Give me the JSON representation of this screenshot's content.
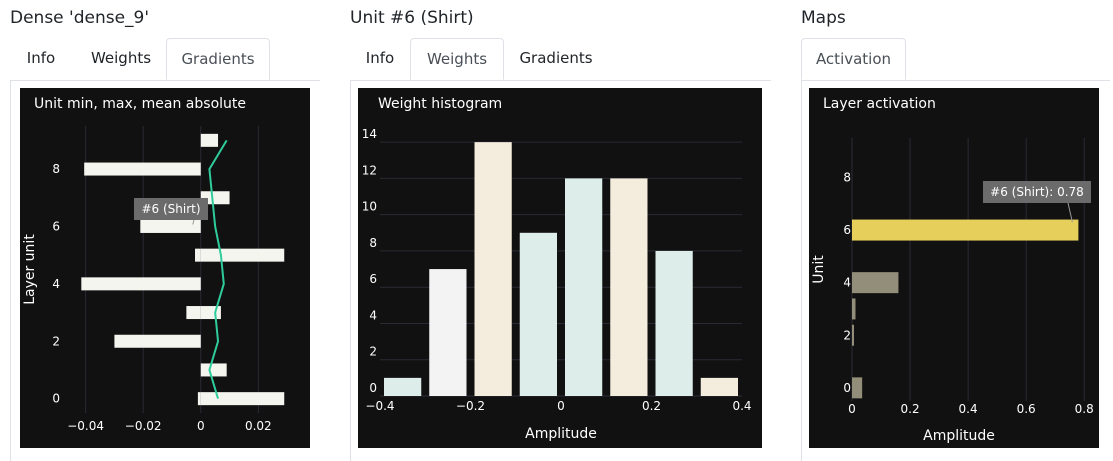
{
  "panels": [
    {
      "title": "Dense 'dense_9'",
      "tabs": [
        {
          "label": "Info"
        },
        {
          "label": "Weights"
        },
        {
          "label": "Gradients"
        }
      ],
      "active_tab": 2
    },
    {
      "title": "Unit #6 (Shirt)",
      "tabs": [
        {
          "label": "Info"
        },
        {
          "label": "Weights"
        },
        {
          "label": "Gradients"
        }
      ],
      "active_tab": 1
    },
    {
      "title": "Maps",
      "tabs": [
        {
          "label": "Activation"
        }
      ],
      "active_tab": 0
    }
  ],
  "colors": {
    "background": "#111111",
    "bar_white": "#f5f5f0",
    "line_green": "#2ecc9a",
    "hist_white": "#f3f3f3",
    "hist_cream": "#f4ecdc",
    "hist_mint": "#dcedea",
    "act_highlight": "#e6cf5b",
    "act_gray": "#938e79",
    "tooltip_bg": "#6b6b6b"
  },
  "chart_data": [
    {
      "type": "bar",
      "orientation": "horizontal",
      "title": "Unit min, max, mean absolute",
      "ylabel": "Layer unit",
      "xlabel": "",
      "xlim": [
        -0.043,
        0.031
      ],
      "ylim": [
        -0.5,
        9.5
      ],
      "x_ticks": [
        {
          "v": -0.04,
          "t": "−0.04"
        },
        {
          "v": -0.02,
          "t": "−0.02"
        },
        {
          "v": 0,
          "t": "0"
        },
        {
          "v": 0.02,
          "t": "0.02"
        }
      ],
      "y_ticks": [
        {
          "v": 0,
          "t": "0"
        },
        {
          "v": 2,
          "t": "2"
        },
        {
          "v": 4,
          "t": "4"
        },
        {
          "v": 6,
          "t": "6"
        },
        {
          "v": 8,
          "t": "8"
        }
      ],
      "units": [
        0,
        1,
        2,
        3,
        4,
        5,
        6,
        7,
        8,
        9
      ],
      "min": [
        -0.001,
        0.0,
        -0.03,
        -0.005,
        -0.0415,
        -0.002,
        -0.021,
        0.0,
        -0.0405,
        0.0
      ],
      "max": [
        0.029,
        0.009,
        0.0,
        0.007,
        0.0,
        0.029,
        0.0,
        0.01,
        0.0,
        0.006
      ],
      "mean_abs": [
        0.006,
        0.003,
        0.006,
        0.005,
        0.008,
        0.007,
        0.005,
        0.004,
        0.003,
        0.009
      ],
      "tooltip": {
        "text": "#6 (Shirt)",
        "unit": 6
      }
    },
    {
      "type": "bar",
      "title": "Weight histogram",
      "xlabel": "Amplitude",
      "ylabel": "",
      "xlim": [
        -0.4,
        0.4
      ],
      "ylim": [
        0,
        15
      ],
      "x_ticks": [
        {
          "v": -0.4,
          "t": "−0.4"
        },
        {
          "v": -0.2,
          "t": "−0.2"
        },
        {
          "v": 0,
          "t": "0"
        },
        {
          "v": 0.2,
          "t": "0.2"
        },
        {
          "v": 0.4,
          "t": "0.4"
        }
      ],
      "y_ticks": [
        {
          "v": 0,
          "t": "0"
        },
        {
          "v": 2,
          "t": "2"
        },
        {
          "v": 4,
          "t": "4"
        },
        {
          "v": 6,
          "t": "6"
        },
        {
          "v": 8,
          "t": "8"
        },
        {
          "v": 10,
          "t": "10"
        },
        {
          "v": 12,
          "t": "12"
        },
        {
          "v": 14,
          "t": "14"
        }
      ],
      "bins": [
        -0.35,
        -0.25,
        -0.15,
        -0.05,
        0.05,
        0.15,
        0.25,
        0.35
      ],
      "bin_width": 0.1,
      "values": [
        1,
        7,
        14,
        9,
        12,
        12,
        8,
        1
      ],
      "bar_colors": [
        "#dcedea",
        "#f3f3f3",
        "#f4ecdc",
        "#dcedea",
        "#dcedea",
        "#f4ecdc",
        "#dcedea",
        "#f4ecdc"
      ]
    },
    {
      "type": "bar",
      "orientation": "horizontal",
      "title": "Layer activation",
      "xlabel": "Amplitude",
      "ylabel": "Unit",
      "xlim": [
        0,
        0.82
      ],
      "ylim": [
        -0.5,
        9.5
      ],
      "x_ticks": [
        {
          "v": 0,
          "t": "0"
        },
        {
          "v": 0.2,
          "t": "0.2"
        },
        {
          "v": 0.4,
          "t": "0.4"
        },
        {
          "v": 0.6,
          "t": "0.6"
        },
        {
          "v": 0.8,
          "t": "0.8"
        }
      ],
      "y_ticks": [
        {
          "v": 0,
          "t": "0"
        },
        {
          "v": 2,
          "t": "2"
        },
        {
          "v": 4,
          "t": "4"
        },
        {
          "v": 6,
          "t": "6"
        },
        {
          "v": 8,
          "t": "8"
        }
      ],
      "units": [
        0,
        1,
        2,
        3,
        4,
        5,
        6,
        7,
        8,
        9
      ],
      "values": [
        0.035,
        0.0,
        0.001,
        0.012,
        0.16,
        0.0,
        0.78,
        0.0,
        0.0,
        0.0
      ],
      "highlight_unit": 6,
      "tooltip": {
        "text": "#6 (Shirt): 0.78",
        "unit": 6
      }
    }
  ]
}
